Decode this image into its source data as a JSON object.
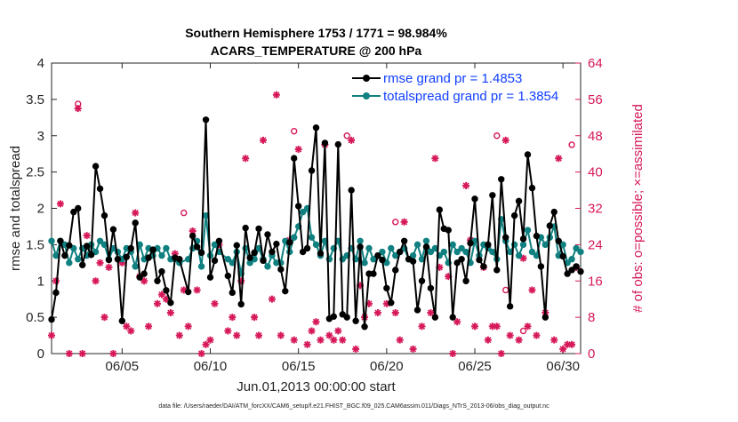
{
  "chart_data": {
    "type": "line",
    "title": "Southern Hemisphere 1753 / 1771 = 98.984%",
    "subtitle": "ACARS_TEMPERATURE @ 200 hPa",
    "xlabel": "Jun.01,2013 00:00:00 start",
    "ylabel": "rmse and totalspread",
    "y2label": "# of obs: o=possible; ×=assimilated",
    "footer": "data file: /Users/raeder/DAI/ATM_forcXX/CAM6_setup/f.e21.FHIST_BGC.f09_025.CAM6assim.011/Diags_NTrS_2013-06/obs_diag_output.nc",
    "xlim": [
      1.0,
      31.0
    ],
    "ylim": [
      0,
      4
    ],
    "y2lim": [
      0,
      64
    ],
    "x_ticks": [
      5,
      10,
      15,
      20,
      25,
      30
    ],
    "x_tick_labels": [
      "06/05",
      "06/10",
      "06/15",
      "06/20",
      "06/25",
      "06/30"
    ],
    "y_ticks": [
      0,
      0.5,
      1,
      1.5,
      2,
      2.5,
      3,
      3.5,
      4
    ],
    "y_tick_labels": [
      "0",
      "0.5",
      "1",
      "1.5",
      "2",
      "2.5",
      "3",
      "3.5",
      "4"
    ],
    "y2_ticks": [
      0,
      8,
      16,
      24,
      32,
      40,
      48,
      56,
      64
    ],
    "y2_tick_labels": [
      "0",
      "8",
      "16",
      "24",
      "32",
      "40",
      "48",
      "56",
      "64"
    ],
    "legend": [
      "rmse grand pr = 1.4853",
      "totalspread grand pr = 1.3854"
    ],
    "legend_loc": "top-right",
    "colors": {
      "rmse": "#000000",
      "totalspread": "#108080",
      "obs": "#d6195a",
      "axis": "#262626",
      "legend_text": "#1240ff"
    },
    "series": [
      {
        "name": "rmse",
        "x": [
          1.0,
          1.25,
          1.5,
          1.75,
          2.0,
          2.25,
          2.5,
          2.75,
          3.0,
          3.25,
          3.5,
          3.75,
          4.0,
          4.25,
          4.5,
          4.75,
          5.0,
          5.25,
          5.5,
          5.75,
          6.0,
          6.25,
          6.5,
          6.75,
          7.0,
          7.25,
          7.5,
          7.75,
          8.0,
          8.25,
          8.75,
          9.0,
          9.25,
          9.5,
          9.75,
          10.0,
          10.25,
          10.5,
          11.0,
          11.25,
          11.5,
          11.75,
          12.0,
          12.25,
          12.5,
          12.75,
          13.0,
          13.25,
          13.5,
          13.75,
          14.0,
          14.25,
          14.5,
          14.75,
          15.0,
          15.25,
          15.5,
          15.75,
          16.0,
          16.25,
          16.5,
          16.75,
          17.0,
          17.25,
          17.5,
          17.75,
          18.0,
          18.25,
          18.5,
          18.75,
          19.0,
          19.25,
          19.5,
          19.75,
          20.0,
          20.25,
          20.5,
          20.75,
          21.0,
          21.25,
          21.5,
          21.75,
          22.0,
          22.25,
          22.5,
          22.75,
          23.0,
          23.25,
          23.5,
          23.75,
          24.0,
          24.25,
          24.5,
          24.75,
          25.0,
          25.25,
          25.5,
          25.75,
          26.0,
          26.25,
          26.5,
          26.75,
          27.0,
          27.25,
          27.5,
          27.75,
          28.0,
          28.25,
          28.5,
          28.75,
          29.0,
          29.25,
          29.5,
          29.75,
          30.0,
          30.25,
          30.5,
          30.75,
          31.0
        ],
        "y": [
          0.47,
          0.84,
          1.55,
          1.35,
          1.49,
          1.95,
          2.0,
          1.22,
          1.48,
          1.36,
          2.58,
          2.27,
          1.9,
          1.29,
          1.71,
          1.3,
          0.45,
          1.33,
          1.45,
          1.8,
          1.05,
          1.1,
          1.32,
          1.43,
          1.0,
          1.13,
          0.87,
          0.7,
          1.32,
          1.3,
          0.85,
          1.62,
          1.47,
          1.39,
          3.22,
          1.05,
          1.28,
          1.55,
          1.07,
          0.84,
          1.49,
          0.68,
          1.73,
          1.32,
          1.39,
          1.72,
          1.28,
          1.64,
          1.4,
          1.51,
          1.16,
          0.86,
          1.53,
          2.69,
          2.03,
          1.4,
          1.45,
          2.52,
          3.11,
          1.38,
          2.9,
          0.48,
          0.51,
          2.88,
          0.54,
          0.5,
          2.25,
          0.45,
          1.47,
          0.37,
          1.1,
          1.1,
          1.35,
          1.29,
          0.9,
          0.7,
          1.15,
          1.4,
          1.55,
          1.3,
          1.27,
          0.6,
          1.0,
          1.47,
          0.9,
          0.5,
          1.98,
          1.72,
          1.7,
          0.5,
          1.25,
          1.3,
          1.0,
          1.52,
          2.13,
          1.29,
          1.2,
          1.5,
          2.18,
          1.15,
          2.4,
          1.6,
          0.65,
          1.9,
          2.1,
          1.58,
          2.74,
          2.28,
          1.62,
          1.2,
          0.5,
          1.76,
          1.95,
          1.55,
          1.34,
          1.1,
          1.15,
          1.2,
          1.13
        ]
      },
      {
        "name": "totalspread",
        "x": [
          1.0,
          1.25,
          1.5,
          1.75,
          2.0,
          2.25,
          2.5,
          2.75,
          3.0,
          3.25,
          3.5,
          3.75,
          4.0,
          4.25,
          4.5,
          4.75,
          5.0,
          5.25,
          5.5,
          5.75,
          6.0,
          6.25,
          6.5,
          6.75,
          7.0,
          7.25,
          7.5,
          7.75,
          8.0,
          8.25,
          8.75,
          9.0,
          9.25,
          9.5,
          9.75,
          10.0,
          10.25,
          10.5,
          11.0,
          11.25,
          11.5,
          11.75,
          12.0,
          12.25,
          12.5,
          12.75,
          13.0,
          13.25,
          13.5,
          13.75,
          14.0,
          14.25,
          14.5,
          14.75,
          15.0,
          15.25,
          15.5,
          15.75,
          16.0,
          16.25,
          16.5,
          16.75,
          17.0,
          17.25,
          17.5,
          17.75,
          18.0,
          18.25,
          18.5,
          18.75,
          19.0,
          19.25,
          19.5,
          19.75,
          20.0,
          20.25,
          20.5,
          20.75,
          21.0,
          21.25,
          21.5,
          21.75,
          22.0,
          22.25,
          22.5,
          22.75,
          23.0,
          23.25,
          23.5,
          23.75,
          24.0,
          24.25,
          24.5,
          24.75,
          25.0,
          25.25,
          25.5,
          25.75,
          26.0,
          26.25,
          26.5,
          26.75,
          27.0,
          27.25,
          27.5,
          27.75,
          28.0,
          28.25,
          28.5,
          28.75,
          29.0,
          29.25,
          29.5,
          29.75,
          30.0,
          30.25,
          30.5,
          30.75,
          31.0
        ],
        "y": [
          1.55,
          1.35,
          1.55,
          1.5,
          1.25,
          1.45,
          1.3,
          1.45,
          1.35,
          1.5,
          1.4,
          1.55,
          1.5,
          1.3,
          1.45,
          1.4,
          1.3,
          1.45,
          1.4,
          1.2,
          1.5,
          1.3,
          1.45,
          1.35,
          1.45,
          1.35,
          1.45,
          1.3,
          1.3,
          1.25,
          1.3,
          1.45,
          1.55,
          1.2,
          1.9,
          1.35,
          1.5,
          1.4,
          1.3,
          1.25,
          1.4,
          1.1,
          1.45,
          1.25,
          1.3,
          1.45,
          1.3,
          1.2,
          1.35,
          1.25,
          1.25,
          1.55,
          1.4,
          1.6,
          1.75,
          1.95,
          2.0,
          1.6,
          1.5,
          1.35,
          1.55,
          1.3,
          1.45,
          1.55,
          1.3,
          1.35,
          1.45,
          1.3,
          1.55,
          1.25,
          1.45,
          1.3,
          1.35,
          1.4,
          1.25,
          1.45,
          1.35,
          1.4,
          1.45,
          1.3,
          1.35,
          1.5,
          1.3,
          1.55,
          1.4,
          1.45,
          1.35,
          1.4,
          1.25,
          1.5,
          1.4,
          1.45,
          1.4,
          1.25,
          1.55,
          1.35,
          1.5,
          1.45,
          1.4,
          1.3,
          1.85,
          1.55,
          1.4,
          1.5,
          1.35,
          1.5,
          1.7,
          1.4,
          1.35,
          1.6,
          1.5,
          1.6,
          1.75,
          1.35,
          1.5,
          1.25,
          1.3,
          1.45,
          1.4
        ]
      },
      {
        "name": "obs_assimilated",
        "x": [
          1.0,
          1.25,
          1.5,
          2.0,
          2.5,
          2.75,
          3.0,
          3.5,
          3.75,
          4.0,
          4.25,
          4.5,
          5.0,
          5.25,
          5.5,
          5.75,
          6.0,
          6.25,
          6.5,
          7.0,
          7.25,
          7.5,
          7.75,
          8.0,
          8.25,
          8.5,
          8.75,
          9.0,
          9.25,
          9.5,
          9.75,
          10.0,
          10.25,
          10.5,
          11.0,
          11.25,
          11.5,
          11.75,
          12.0,
          12.5,
          12.75,
          13.0,
          13.5,
          13.75,
          14.0,
          14.5,
          14.75,
          15.0,
          15.5,
          15.75,
          16.0,
          16.25,
          16.5,
          16.75,
          17.0,
          17.25,
          17.5,
          18.0,
          18.25,
          18.5,
          18.75,
          19.0,
          19.5,
          20.0,
          20.5,
          20.75,
          21.0,
          21.5,
          22.0,
          22.5,
          22.75,
          23.0,
          23.5,
          23.75,
          24.0,
          24.5,
          24.75,
          25.0,
          25.5,
          25.75,
          26.0,
          26.25,
          26.5,
          26.75,
          27.0,
          27.5,
          27.75,
          28.0,
          28.25,
          28.5,
          29.0,
          29.5,
          29.75,
          30.0,
          30.25,
          30.5,
          30.75
        ],
        "y": [
          4,
          16,
          33,
          0,
          54,
          0,
          26,
          16,
          20,
          8,
          19,
          0,
          20,
          6,
          5,
          31,
          17,
          16,
          6,
          11,
          13,
          12,
          9,
          22,
          4,
          14,
          6,
          27,
          14,
          0,
          2,
          3,
          11,
          24,
          5,
          8,
          4,
          16,
          43,
          8,
          4,
          47,
          12,
          57,
          4,
          25,
          3,
          45,
          2,
          5,
          7,
          3,
          46,
          4,
          3,
          5,
          3,
          47,
          1,
          15,
          8,
          11,
          9,
          11,
          9,
          3,
          29,
          1,
          6,
          9,
          43,
          19,
          17,
          0,
          7,
          37,
          25,
          6,
          19,
          3,
          6,
          6,
          0,
          47,
          4,
          3,
          21,
          6,
          14,
          4,
          9,
          3,
          43,
          1,
          2,
          2,
          19
        ]
      },
      {
        "name": "obs_possible",
        "x": [
          2.5,
          8.5,
          14.75,
          17.75,
          20.5,
          26.25,
          26.75,
          27.75,
          30.5
        ],
        "y": [
          55,
          31,
          49,
          48,
          29,
          48,
          14,
          5,
          46
        ]
      }
    ]
  }
}
